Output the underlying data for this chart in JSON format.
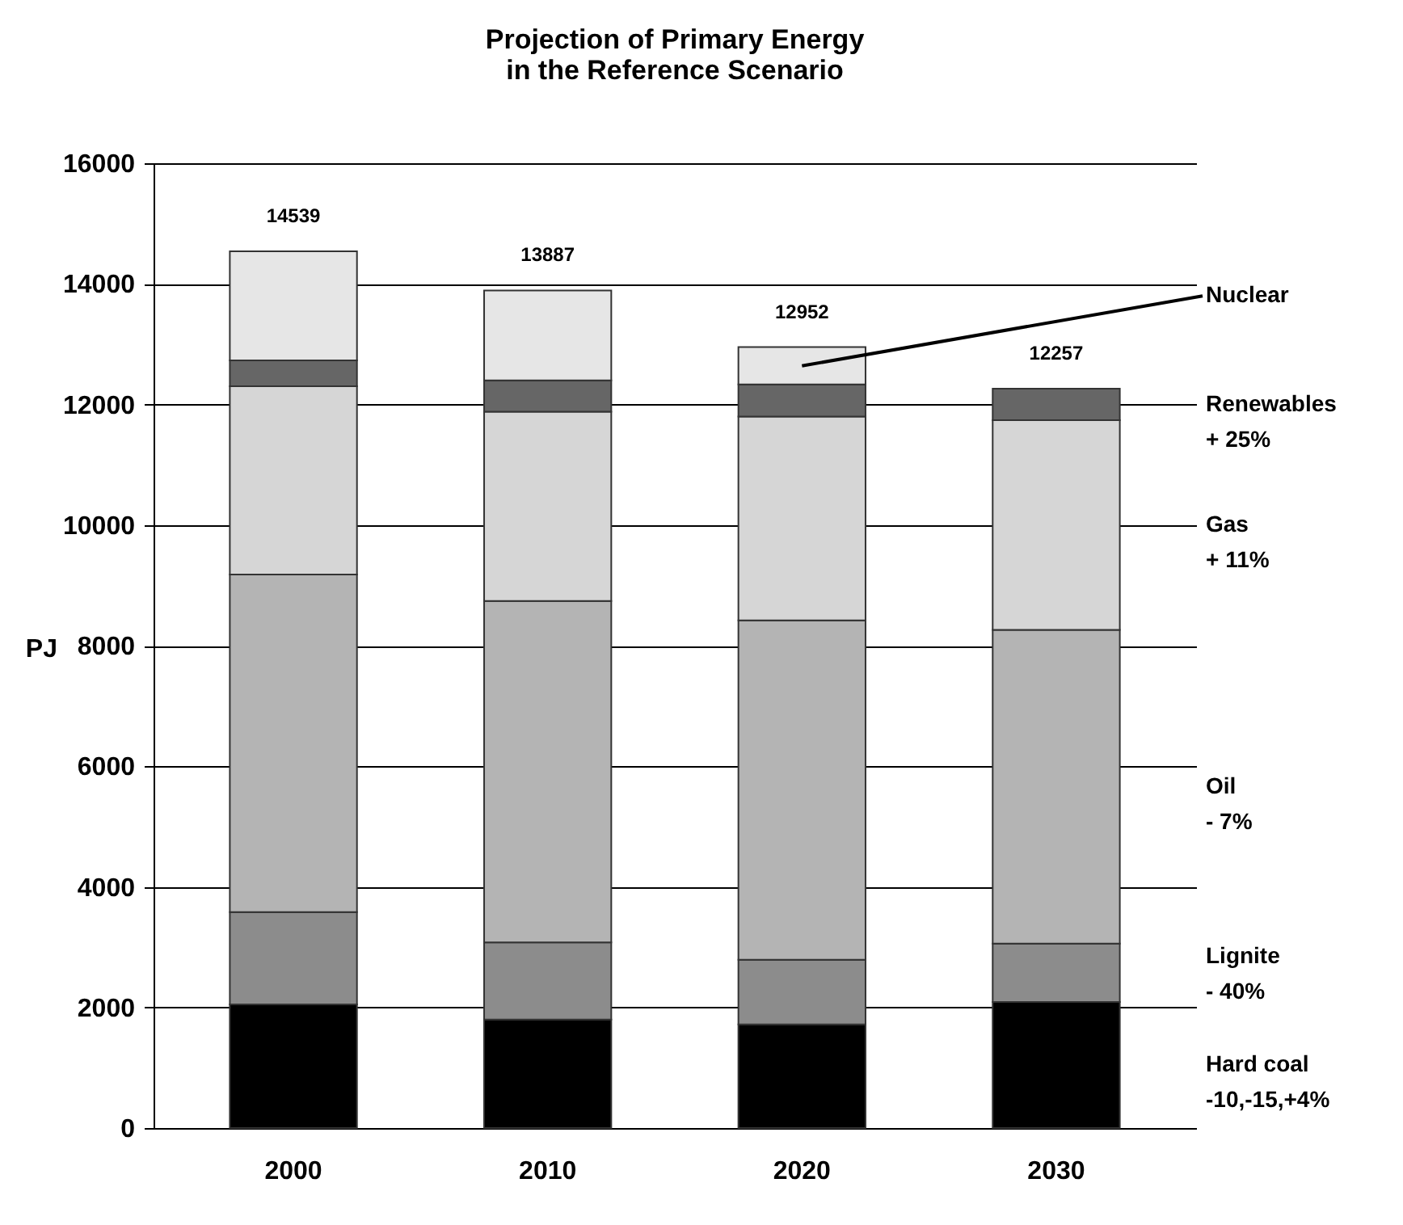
{
  "chart_data": {
    "type": "bar",
    "title": "Projection of Primary Energy\nin the Reference Scenario",
    "ylabel": "PJ",
    "categories": [
      "2000",
      "2010",
      "2020",
      "2030"
    ],
    "stacked": true,
    "series": [
      {
        "name": "Hard coal\n -10,-15,+4%",
        "color": "#000000",
        "values": [
          2050,
          1800,
          1720,
          2090
        ]
      },
      {
        "name": "Lignite\n- 40%",
        "color": "#8c8c8c",
        "values": [
          1530,
          1280,
          1070,
          970
        ]
      },
      {
        "name": "Oil\n- 7%",
        "color": "#b4b4b4",
        "values": [
          5600,
          5660,
          5630,
          5200
        ]
      },
      {
        "name": "Gas\n+ 11%",
        "color": "#d6d6d6",
        "values": [
          3120,
          3140,
          3380,
          3480
        ]
      },
      {
        "name": "Renewables\n+ 25%",
        "color": "#666666",
        "values": [
          430,
          520,
          530,
          520
        ]
      },
      {
        "name": "Nuclear",
        "color": "#e6e6e6",
        "values": [
          1810,
          1490,
          620,
          null
        ]
      }
    ],
    "totals": [
      "14539",
      "13887",
      "12952",
      "12257"
    ],
    "ylim": [
      0,
      16000
    ],
    "yticks": [
      0,
      2000,
      4000,
      6000,
      8000,
      10000,
      12000,
      14000,
      16000
    ],
    "grid": "y"
  }
}
